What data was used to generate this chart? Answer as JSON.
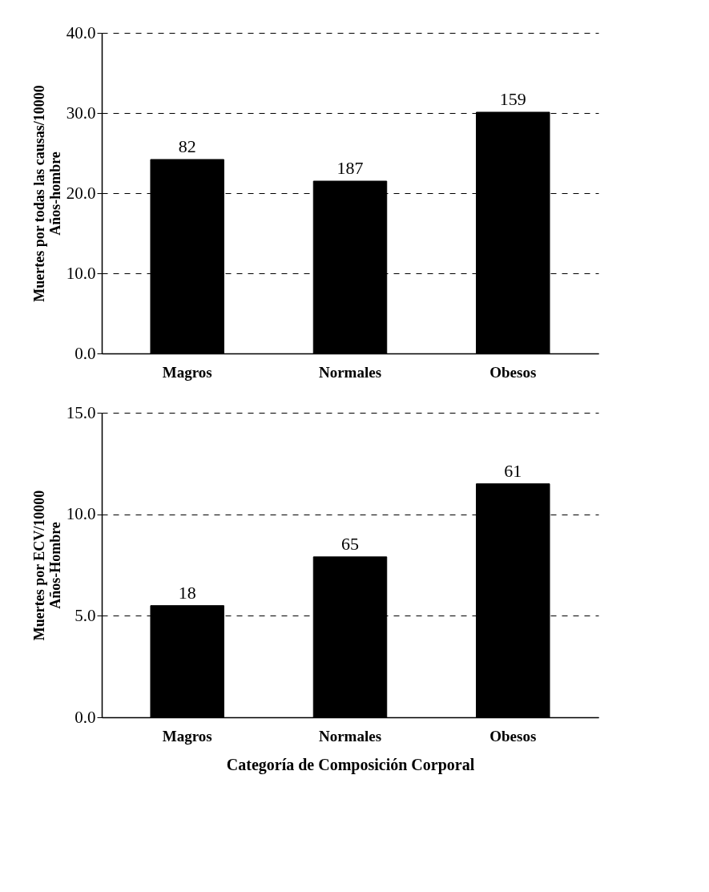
{
  "chart_data": [
    {
      "type": "bar",
      "ylabel": "Muertes por todas las causas/10000 Años-hombre",
      "categories": [
        "Magros",
        "Normales",
        "Obesos"
      ],
      "values": [
        24.2,
        21.5,
        30.1
      ],
      "color": "#000000",
      "ylim": [
        0,
        40
      ],
      "yticks": [
        {
          "value": 0,
          "label": "0.0"
        },
        {
          "value": 10,
          "label": "10.0"
        },
        {
          "value": 20,
          "label": "20.0"
        },
        {
          "value": 30,
          "label": "30.0"
        },
        {
          "value": 40,
          "label": "40.0"
        }
      ],
      "grid": "y",
      "line_style": "dashed",
      "annotations": [
        {
          "text": "82",
          "x": "Magros",
          "y": 24.2
        },
        {
          "text": "187",
          "x": "Normales",
          "y": 21.5
        },
        {
          "text": "159",
          "x": "Obesos",
          "y": 30.1
        }
      ]
    },
    {
      "type": "bar",
      "xlabel": "Categoría de Composición Corporal",
      "ylabel": "Muertes por ECV/10000 Años-Hombre",
      "categories": [
        "Magros",
        "Normales",
        "Obesos"
      ],
      "values": [
        5.5,
        7.9,
        11.5
      ],
      "color": "#000000",
      "ylim": [
        0,
        15
      ],
      "yticks": [
        {
          "value": 0,
          "label": "0.0"
        },
        {
          "value": 5,
          "label": "5.0"
        },
        {
          "value": 10,
          "label": "10.0"
        },
        {
          "value": 15,
          "label": "15.0"
        }
      ],
      "grid": "y",
      "line_style": "dashed",
      "annotations": [
        {
          "text": "18",
          "x": "Magros",
          "y": 5.5
        },
        {
          "text": "65",
          "x": "Normales",
          "y": 7.9
        },
        {
          "text": "61",
          "x": "Obesos",
          "y": 11.5
        }
      ]
    }
  ]
}
